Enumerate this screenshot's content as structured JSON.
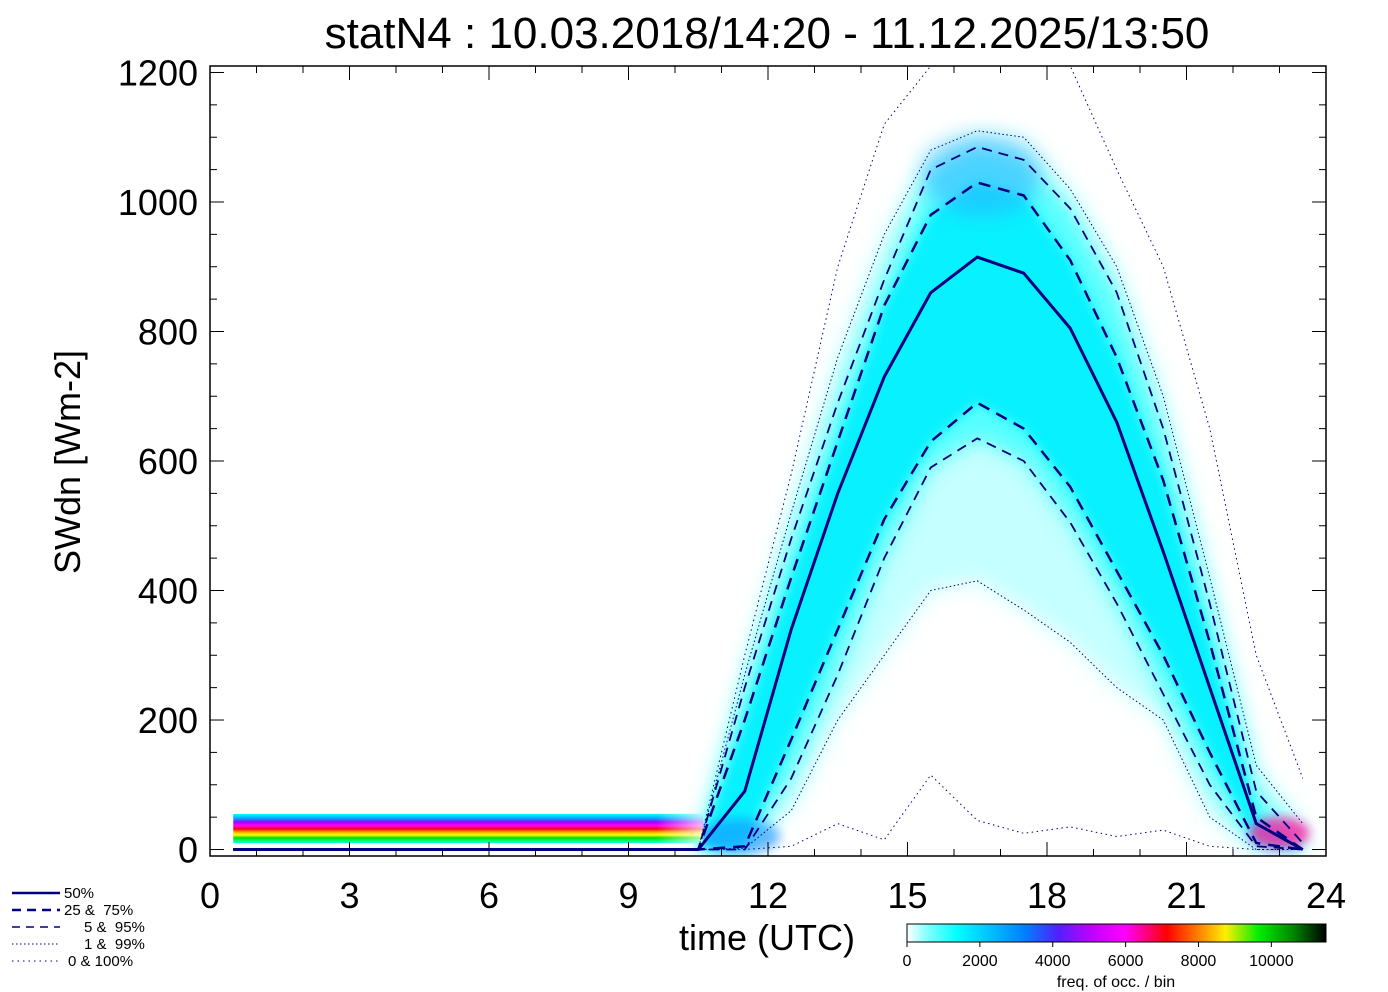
{
  "chart_data": {
    "type": "line",
    "title": "statN4 : 10.03.2018/14:20 - 11.12.2025/13:50",
    "xlabel": "time (UTC)",
    "ylabel": "SWdn [Wm-2]",
    "xlim": [
      0,
      24
    ],
    "ylim": [
      -10,
      1210
    ],
    "x_ticks": [
      0,
      3,
      6,
      9,
      12,
      15,
      18,
      21,
      24
    ],
    "x_tick_labels": [
      "0",
      "3",
      "6",
      "9",
      "12",
      "15",
      "18",
      "21",
      "24"
    ],
    "y_ticks": [
      0,
      200,
      400,
      600,
      800,
      1000,
      1200
    ],
    "y_tick_labels": [
      "0",
      "200",
      "400",
      "600",
      "800",
      "1000",
      "1200"
    ],
    "grid": false,
    "legend_position": "bottom-left",
    "legend": [
      {
        "label": "50%",
        "style": "solid"
      },
      {
        "label": "25 &  75%",
        "style": "dashed"
      },
      {
        "label": "5 &  95%",
        "style": "dashed"
      },
      {
        "label": "1 &  99%",
        "style": "dotted"
      },
      {
        "label": "0 & 100%",
        "style": "dotted"
      }
    ],
    "colorbar": {
      "label": "freq. of occ. / bin",
      "ticks": [
        "0",
        "2000",
        "4000",
        "6000",
        "8000",
        "10000"
      ],
      "tick_values": [
        0,
        2000,
        4000,
        6000,
        8000,
        10000
      ],
      "range": [
        0,
        11500
      ],
      "colors": [
        "#ffffff",
        "#00ffff",
        "#0066ff",
        "#aa00ff",
        "#ff00ff",
        "#ff0000",
        "#ffaa00",
        "#ffff00",
        "#00dd00",
        "#000000"
      ]
    },
    "line_color": "#000080",
    "x": [
      0.5,
      1.5,
      2.5,
      3.5,
      4.5,
      5.5,
      6.5,
      7.5,
      8.5,
      9.5,
      10.5,
      11.5,
      12.5,
      13.5,
      14.5,
      15.5,
      16.5,
      17.5,
      18.5,
      19.5,
      20.5,
      21.5,
      22.5,
      23.5
    ],
    "series": [
      {
        "name": "50%",
        "style": "solid",
        "values": [
          0,
          0,
          0,
          0,
          0,
          0,
          0,
          0,
          0,
          0,
          0,
          90,
          340,
          550,
          730,
          860,
          915,
          890,
          805,
          660,
          460,
          250,
          40,
          0
        ]
      },
      {
        "name": "25%",
        "style": "dashed",
        "values": [
          0,
          0,
          0,
          0,
          0,
          0,
          0,
          0,
          0,
          0,
          0,
          5,
          170,
          340,
          510,
          630,
          690,
          650,
          560,
          430,
          300,
          150,
          10,
          0
        ]
      },
      {
        "name": "75%",
        "style": "dashed",
        "values": [
          0,
          0,
          0,
          0,
          0,
          0,
          0,
          0,
          0,
          0,
          0,
          200,
          420,
          630,
          840,
          980,
          1030,
          1010,
          910,
          760,
          570,
          320,
          50,
          0
        ]
      },
      {
        "name": "5%",
        "style": "dashed",
        "values": [
          0,
          0,
          0,
          0,
          0,
          0,
          0,
          0,
          0,
          0,
          0,
          0,
          110,
          270,
          450,
          590,
          635,
          600,
          505,
          380,
          240,
          100,
          5,
          0
        ]
      },
      {
        "name": "95%",
        "style": "dashed",
        "values": [
          0,
          0,
          0,
          0,
          0,
          0,
          0,
          0,
          0,
          0,
          0,
          250,
          480,
          690,
          880,
          1050,
          1085,
          1065,
          990,
          860,
          650,
          380,
          90,
          10
        ]
      },
      {
        "name": "1%",
        "style": "dotted",
        "values": [
          0,
          0,
          0,
          0,
          0,
          0,
          0,
          0,
          0,
          0,
          0,
          2,
          60,
          200,
          300,
          400,
          415,
          370,
          320,
          250,
          200,
          50,
          0,
          0
        ]
      },
      {
        "name": "99%",
        "style": "dotted",
        "values": [
          0,
          0,
          0,
          0,
          0,
          0,
          0,
          0,
          0,
          0,
          0,
          270,
          520,
          760,
          950,
          1080,
          1110,
          1100,
          1020,
          900,
          700,
          420,
          130,
          40
        ]
      },
      {
        "name": "0%",
        "style": "dotted",
        "values": [
          0,
          0,
          0,
          0,
          0,
          0,
          0,
          0,
          0,
          0,
          0,
          0,
          5,
          40,
          15,
          115,
          45,
          25,
          35,
          20,
          30,
          5,
          0,
          0
        ]
      },
      {
        "name": "100%",
        "style": "dotted",
        "values": [
          0,
          0,
          0,
          0,
          0,
          0,
          0,
          0,
          0,
          0,
          0,
          300,
          580,
          900,
          1120,
          1210,
          1210,
          1210,
          1210,
          1050,
          900,
          650,
          300,
          110
        ]
      }
    ],
    "night_band": {
      "x_start": 0.5,
      "x_end": 10.6,
      "y_low": 10,
      "y_high": 55
    }
  }
}
